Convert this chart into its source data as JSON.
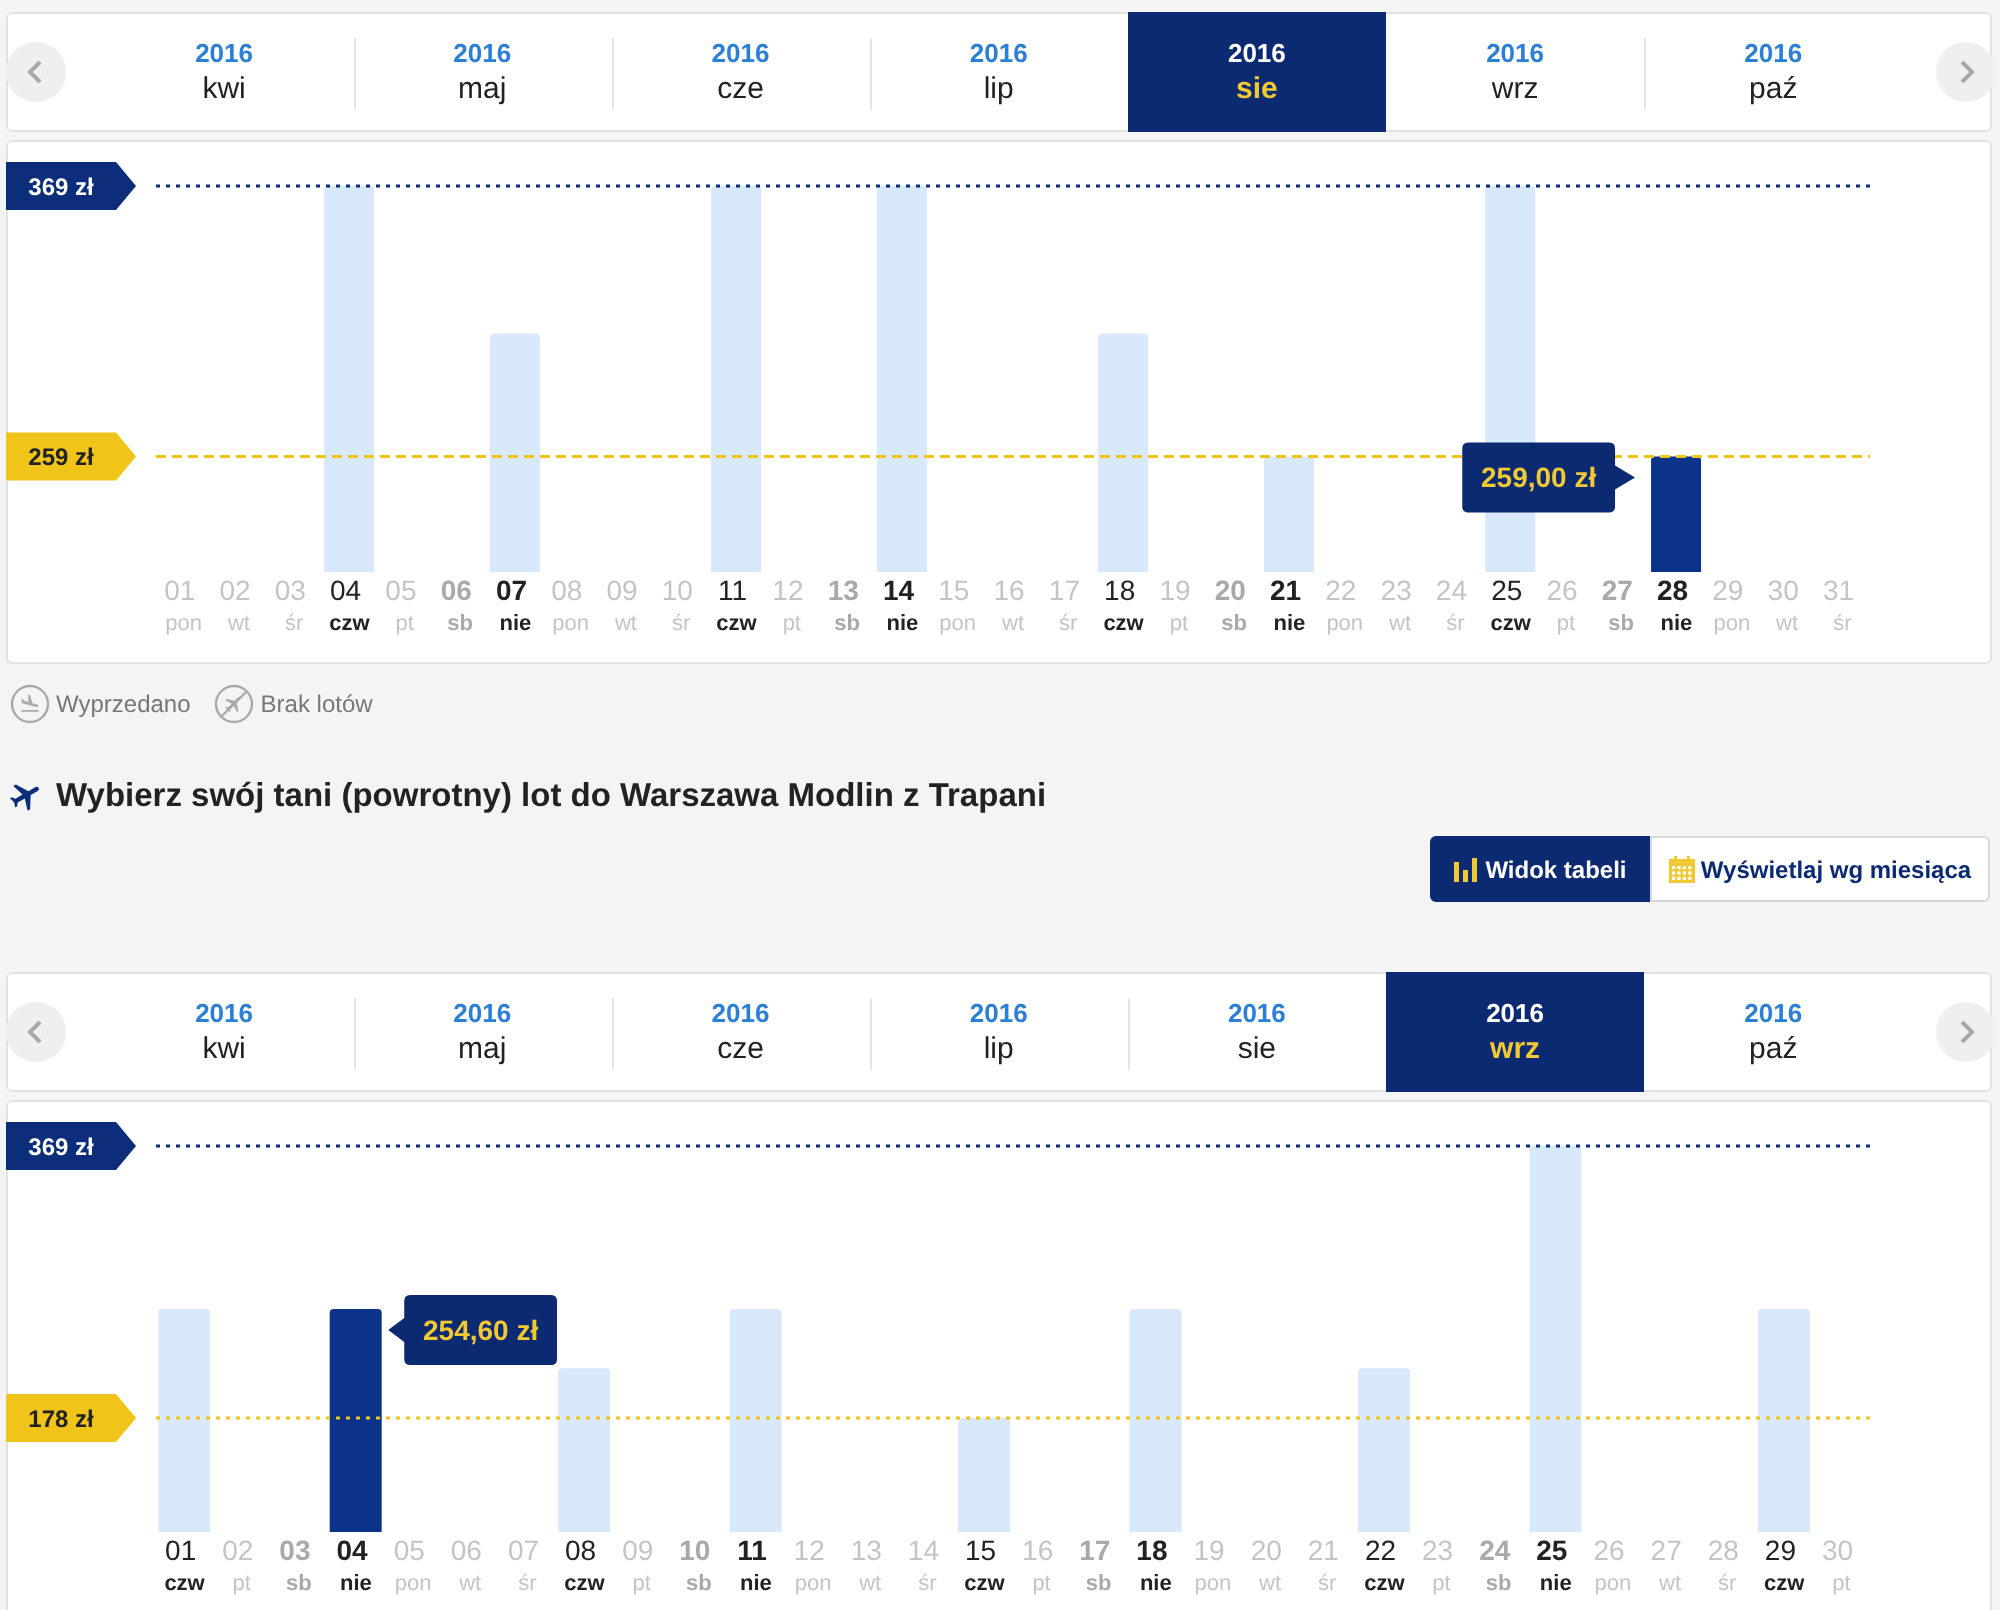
{
  "chart_data": [
    {
      "type": "bar",
      "categories": [
        "01 pon",
        "02 wt",
        "03 śr",
        "04 czw",
        "05 pt",
        "06 sb",
        "07 nie",
        "08 pon",
        "09 wt",
        "10 śr",
        "11 czw",
        "12 pt",
        "13 sb",
        "14 nie",
        "15 pon",
        "16 wt",
        "17 śr",
        "18 czw",
        "19 pt",
        "20 sb",
        "21 nie",
        "22 pon",
        "23 wt",
        "24 śr",
        "25 czw",
        "26 pt",
        "27 sb",
        "28 nie",
        "29 pon",
        "30 wt",
        "31 śr"
      ],
      "values": [
        null,
        null,
        null,
        369,
        null,
        null,
        309,
        null,
        null,
        null,
        369,
        null,
        null,
        369,
        null,
        null,
        null,
        309,
        null,
        null,
        259,
        null,
        null,
        null,
        369,
        null,
        null,
        259,
        null,
        null,
        null
      ],
      "colors": [
        "#d8e9fc",
        "#d8e9fc",
        "#d8e9fc",
        "#d8e9fc",
        "#d8e9fc",
        "#d8e9fc",
        "#d8e9fc",
        "#d8e9fc",
        "#d8e9fc",
        "#d8e9fc",
        "#d8e9fc",
        "#d8e9fc",
        "#d8e9fc",
        "#d8e9fc",
        "#d8e9fc",
        "#d8e9fc",
        "#d8e9fc",
        "#d8e9fc",
        "#d8e9fc",
        "#d8e9fc",
        "#d8e9fc",
        "#d8e9fc",
        "#d8e9fc",
        "#d8e9fc",
        "#d8e9fc",
        "#d8e9fc",
        "#d8e9fc",
        "#0a3389",
        "#d8e9fc",
        "#d8e9fc",
        "#d8e9fc"
      ],
      "ylim": [
        212,
        369
      ],
      "yticks": [
        {
          "value": 259,
          "label": "259 zł"
        },
        {
          "value": 369,
          "label": "369 zł"
        }
      ],
      "ref_lines": [
        {
          "axis": "y",
          "value": 369,
          "color": "#0b2d7a",
          "line_style": "dotted"
        },
        {
          "axis": "y",
          "value": 259,
          "color": "#f0c419",
          "line_style": "dashed"
        }
      ],
      "annotations": [
        "2016 kwi",
        "2016 maj",
        "2016 cze",
        "2016 lip",
        "2016 sie",
        "2016 wrz",
        "2016 paź",
        "Wyprzedano",
        "Brak lotów",
        {
          "text": "259,00 zł",
          "x": "28 nie",
          "y": 259
        }
      ]
    },
    {
      "type": "bar",
      "title": "Wybierz swój tani (powrotny) lot do Warszawa Modlin z Trapani",
      "categories": [
        "01 czw",
        "02 pt",
        "03 sb",
        "04 nie",
        "05 pon",
        "06 wt",
        "07 śr",
        "08 czw",
        "09 pt",
        "10 sb",
        "11 nie",
        "12 pon",
        "13 wt",
        "14 śr",
        "15 czw",
        "16 pt",
        "17 sb",
        "18 nie",
        "19 pon",
        "20 wt",
        "21 śr",
        "22 czw",
        "23 pt",
        "24 sb",
        "25 nie",
        "26 pon",
        "27 wt",
        "28 śr",
        "29 czw",
        "30 pt"
      ],
      "values": [
        254.6,
        null,
        null,
        254.6,
        null,
        null,
        null,
        213,
        null,
        null,
        254.6,
        null,
        null,
        null,
        178,
        null,
        null,
        254.6,
        null,
        null,
        null,
        213,
        null,
        null,
        369,
        null,
        null,
        null,
        254.6,
        null
      ],
      "colors": [
        "#d8e9fc",
        "#d8e9fc",
        "#d8e9fc",
        "#0a3389",
        "#d8e9fc",
        "#d8e9fc",
        "#d8e9fc",
        "#d8e9fc",
        "#d8e9fc",
        "#d8e9fc",
        "#d8e9fc",
        "#d8e9fc",
        "#d8e9fc",
        "#d8e9fc",
        "#d8e9fc",
        "#d8e9fc",
        "#d8e9fc",
        "#d8e9fc",
        "#d8e9fc",
        "#d8e9fc",
        "#d8e9fc",
        "#d8e9fc",
        "#d8e9fc",
        "#d8e9fc",
        "#d8e9fc",
        "#d8e9fc",
        "#d8e9fc",
        "#d8e9fc",
        "#d8e9fc",
        "#d8e9fc"
      ],
      "ylim": [
        98,
        369
      ],
      "yticks": [
        {
          "value": 178,
          "label": "178 zł"
        },
        {
          "value": 369,
          "label": "369 zł"
        }
      ],
      "ref_lines": [
        {
          "axis": "y",
          "value": 369,
          "color": "#0b2d7a",
          "line_style": "dotted"
        },
        {
          "axis": "y",
          "value": 178,
          "color": "#f0c419",
          "line_style": "dotted"
        }
      ],
      "annotations": [
        "Widok tabeli",
        "Wyświetlaj wg miesiąca",
        "2016 kwi",
        "2016 maj",
        "2016 cze",
        "2016 lip",
        "2016 sie",
        "2016 wrz",
        "2016 paź",
        {
          "text": "254,60 zł",
          "x": "04 nie",
          "y": 254.6
        }
      ]
    }
  ]
}
